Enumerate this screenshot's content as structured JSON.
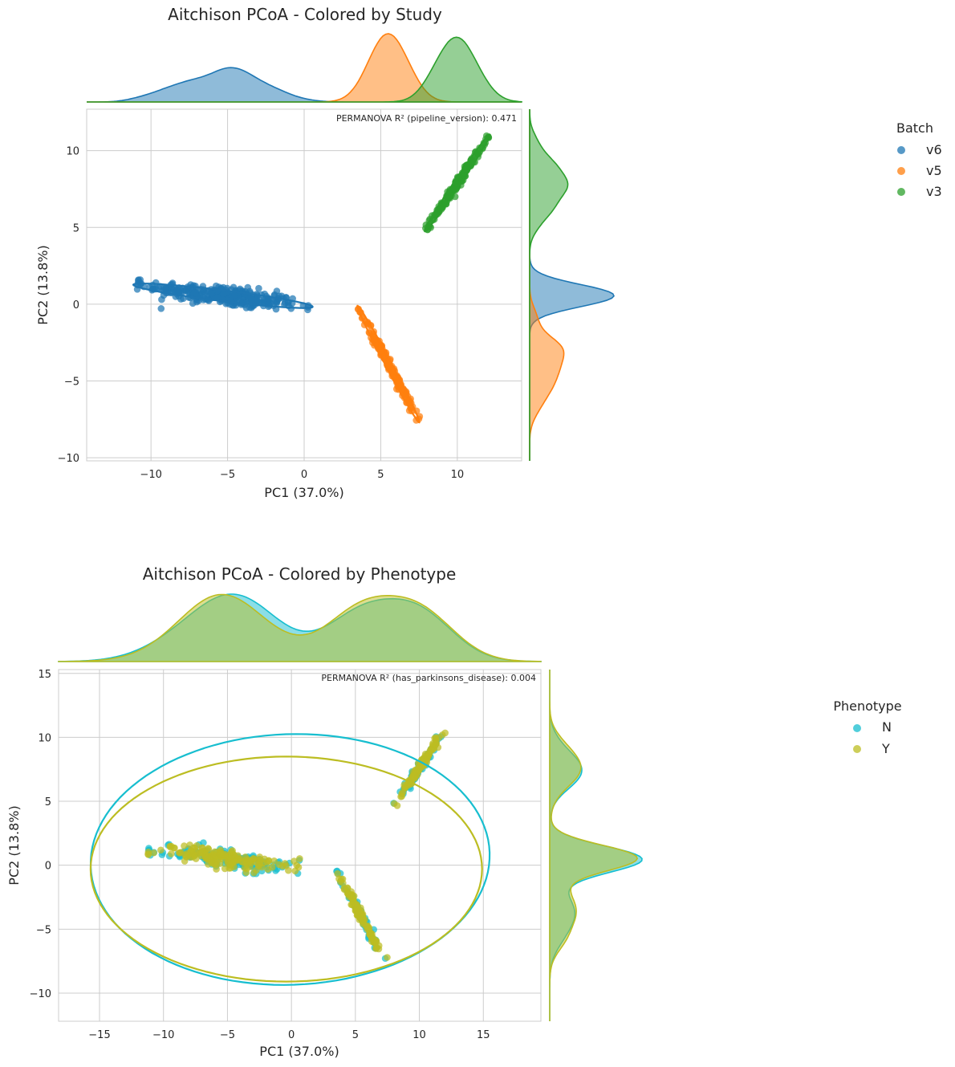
{
  "chart_data": [
    {
      "type": "scatter",
      "title": "Aitchison PCoA - Colored by Study",
      "xlabel": "PC1 (37.0%)",
      "ylabel": "PC2 (13.8%)",
      "xlim": [
        -14.2,
        14.2
      ],
      "ylim": [
        -10.2,
        12.7
      ],
      "xticks": [
        -10,
        -5,
        0,
        5,
        10
      ],
      "xtick_labels": [
        "−10",
        "−5",
        "0",
        "5",
        "10"
      ],
      "yticks": [
        -10,
        -5,
        0,
        5,
        10
      ],
      "ytick_labels": [
        "−10",
        "−5",
        "0",
        "5",
        "10"
      ],
      "grid": true,
      "annotation": "PERMANOVA R² (pipeline_version): 0.471",
      "legend": {
        "title": "Batch",
        "position": "right",
        "entries": [
          "v6",
          "v5",
          "v3"
        ]
      },
      "marginals": "kde on top (PC1) and right (PC2), filled, per group",
      "series": [
        {
          "name": "v6",
          "color": "#1f77b4",
          "shape": "elongated cluster",
          "center": [
            -5.2,
            0.6
          ],
          "x_range": [
            -11.0,
            0.2
          ],
          "y_range": [
            -0.3,
            1.9
          ],
          "ellipse": {
            "center": [
              -5.3,
              0.55
            ],
            "semi_axes": [
              5.9,
              0.35
            ],
            "angle_deg": -7
          }
        },
        {
          "name": "v5",
          "color": "#ff7f0e",
          "shape": "elongated cluster",
          "center": [
            5.5,
            -3.9
          ],
          "x_range": [
            3.5,
            7.3
          ],
          "y_range": [
            -7.8,
            -0.3
          ],
          "ellipse": {
            "center": [
              5.5,
              -3.9
            ],
            "semi_axes": [
              4.3,
              0.2
            ],
            "angle_deg": -62
          }
        },
        {
          "name": "v3",
          "color": "#2ca02c",
          "shape": "elongated cluster",
          "center": [
            10.0,
            7.5
          ],
          "x_range": [
            7.5,
            12.0
          ],
          "y_range": [
            4.5,
            10.6
          ],
          "ellipse": {
            "center": [
              10.0,
              7.9
            ],
            "semi_axes": [
              3.8,
              0.2
            ],
            "angle_deg": 56
          }
        }
      ]
    },
    {
      "type": "scatter",
      "title": "Aitchison PCoA - Colored by Phenotype",
      "xlabel": "PC1 (37.0%)",
      "ylabel": "PC2 (13.8%)",
      "xlim": [
        -18.2,
        19.5
      ],
      "ylim": [
        -12.2,
        15.3
      ],
      "xticks": [
        -15,
        -10,
        -5,
        0,
        5,
        10,
        15
      ],
      "xtick_labels": [
        "−15",
        "−10",
        "−5",
        "0",
        "5",
        "10",
        "15"
      ],
      "yticks": [
        -10,
        -5,
        0,
        5,
        10,
        15
      ],
      "ytick_labels": [
        "−10",
        "−5",
        "0",
        "5",
        "10",
        "15"
      ],
      "grid": true,
      "annotation": "PERMANOVA R² (has_parkinsons_disease): 0.004",
      "legend": {
        "title": "Phenotype",
        "position": "right",
        "entries": [
          "N",
          "Y"
        ]
      },
      "marginals": "kde on top (PC1) and right (PC2), filled, per group",
      "series": [
        {
          "name": "N",
          "color": "#17becf",
          "ellipse": {
            "center": [
              -0.1,
              0.45
            ],
            "semi_axes": [
              15.6,
              9.8
            ],
            "angle_deg": 2
          }
        },
        {
          "name": "Y",
          "color": "#bcbd22",
          "ellipse": {
            "center": [
              -0.4,
              -0.3
            ],
            "semi_axes": [
              15.3,
              8.8
            ],
            "angle_deg": 0
          }
        }
      ],
      "clusters": [
        {
          "center": [
            -5.2,
            0.6
          ],
          "x_range": [
            -11.0,
            0.2
          ],
          "y_range": [
            -0.8,
            1.9
          ]
        },
        {
          "center": [
            5.5,
            -3.9
          ],
          "x_range": [
            3.6,
            7.3
          ],
          "y_range": [
            -7.3,
            -0.6
          ]
        },
        {
          "center": [
            10.0,
            7.5
          ],
          "x_range": [
            7.5,
            12.0
          ],
          "y_range": [
            4.5,
            10.4
          ]
        }
      ]
    }
  ]
}
